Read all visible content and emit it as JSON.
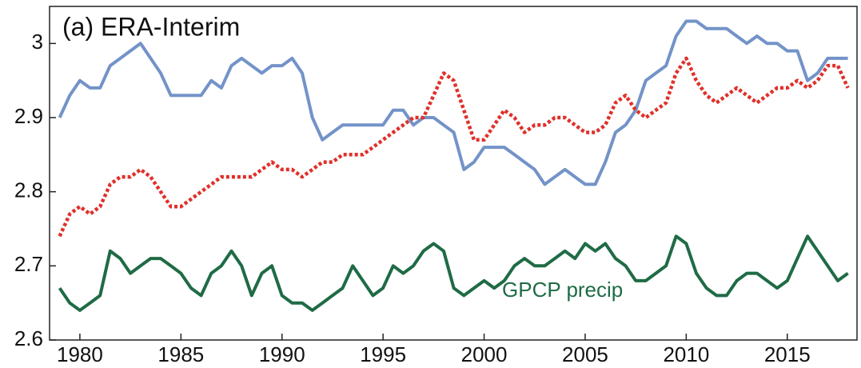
{
  "chart_data": {
    "type": "line",
    "title": "(a) ERA-Interim",
    "x": [
      1979,
      1979.5,
      1980,
      1980.5,
      1981,
      1981.5,
      1982,
      1982.5,
      1983,
      1983.5,
      1984,
      1984.5,
      1985,
      1985.5,
      1986,
      1986.5,
      1987,
      1987.5,
      1988,
      1988.5,
      1989,
      1989.5,
      1990,
      1990.5,
      1991,
      1991.5,
      1992,
      1992.5,
      1993,
      1993.5,
      1994,
      1994.5,
      1995,
      1995.5,
      1996,
      1996.5,
      1997,
      1997.5,
      1998,
      1998.5,
      1999,
      1999.5,
      2000,
      2000.5,
      2001,
      2001.5,
      2002,
      2002.5,
      2003,
      2003.5,
      2004,
      2004.5,
      2005,
      2005.5,
      2006,
      2006.5,
      2007,
      2007.5,
      2008,
      2008.5,
      2009,
      2009.5,
      2010,
      2010.5,
      2011,
      2011.5,
      2012,
      2012.5,
      2013,
      2013.5,
      2014,
      2014.5,
      2015,
      2015.5,
      2016,
      2016.5,
      2017,
      2017.5,
      2018
    ],
    "series": [
      {
        "color": "#7393c8",
        "style": "solid",
        "values": [
          2.9,
          2.93,
          2.95,
          2.94,
          2.94,
          2.97,
          2.98,
          2.99,
          3.0,
          2.98,
          2.96,
          2.93,
          2.93,
          2.93,
          2.93,
          2.95,
          2.94,
          2.97,
          2.98,
          2.97,
          2.96,
          2.97,
          2.97,
          2.98,
          2.96,
          2.9,
          2.87,
          2.88,
          2.89,
          2.89,
          2.89,
          2.89,
          2.89,
          2.91,
          2.91,
          2.89,
          2.9,
          2.9,
          2.89,
          2.88,
          2.83,
          2.84,
          2.86,
          2.86,
          2.86,
          2.85,
          2.84,
          2.83,
          2.81,
          2.82,
          2.83,
          2.82,
          2.81,
          2.81,
          2.84,
          2.88,
          2.89,
          2.91,
          2.95,
          2.96,
          2.97,
          3.01,
          3.03,
          3.03,
          3.02,
          3.02,
          3.02,
          3.01,
          3.0,
          3.01,
          3.0,
          3.0,
          2.99,
          2.99,
          2.95,
          2.96,
          2.98,
          2.98,
          2.98
        ]
      },
      {
        "color": "#e0302a",
        "style": "dotted",
        "values": [
          2.74,
          2.77,
          2.78,
          2.77,
          2.78,
          2.81,
          2.82,
          2.82,
          2.83,
          2.82,
          2.8,
          2.78,
          2.78,
          2.79,
          2.8,
          2.81,
          2.82,
          2.82,
          2.82,
          2.82,
          2.83,
          2.84,
          2.83,
          2.83,
          2.82,
          2.83,
          2.84,
          2.84,
          2.85,
          2.85,
          2.85,
          2.86,
          2.87,
          2.88,
          2.89,
          2.9,
          2.9,
          2.93,
          2.96,
          2.95,
          2.91,
          2.87,
          2.87,
          2.89,
          2.91,
          2.9,
          2.88,
          2.89,
          2.89,
          2.9,
          2.9,
          2.89,
          2.88,
          2.88,
          2.89,
          2.92,
          2.93,
          2.91,
          2.9,
          2.91,
          2.92,
          2.96,
          2.98,
          2.95,
          2.93,
          2.92,
          2.93,
          2.94,
          2.93,
          2.92,
          2.93,
          2.94,
          2.94,
          2.95,
          2.94,
          2.95,
          2.97,
          2.97,
          2.94
        ]
      },
      {
        "name": "GPCP precip",
        "color": "#1f6b45",
        "style": "solid",
        "values": [
          2.67,
          2.65,
          2.64,
          2.65,
          2.66,
          2.72,
          2.71,
          2.69,
          2.7,
          2.71,
          2.71,
          2.7,
          2.69,
          2.67,
          2.66,
          2.69,
          2.7,
          2.72,
          2.7,
          2.66,
          2.69,
          2.7,
          2.66,
          2.65,
          2.65,
          2.64,
          2.65,
          2.66,
          2.67,
          2.7,
          2.68,
          2.66,
          2.67,
          2.7,
          2.69,
          2.7,
          2.72,
          2.73,
          2.72,
          2.67,
          2.66,
          2.67,
          2.68,
          2.67,
          2.68,
          2.7,
          2.71,
          2.7,
          2.7,
          2.71,
          2.72,
          2.71,
          2.73,
          2.72,
          2.73,
          2.71,
          2.7,
          2.68,
          2.68,
          2.69,
          2.7,
          2.74,
          2.73,
          2.69,
          2.67,
          2.66,
          2.66,
          2.68,
          2.69,
          2.69,
          2.68,
          2.67,
          2.68,
          2.71,
          2.74,
          2.72,
          2.7,
          2.68,
          2.69
        ]
      }
    ],
    "xlim": [
      1978.5,
      2018.45
    ],
    "ylim": [
      2.6,
      3.05
    ],
    "xticks": [
      1980,
      1985,
      1990,
      1995,
      2000,
      2005,
      2010,
      2015
    ],
    "yticks": [
      2.6,
      2.7,
      2.8,
      2.9,
      3
    ]
  }
}
